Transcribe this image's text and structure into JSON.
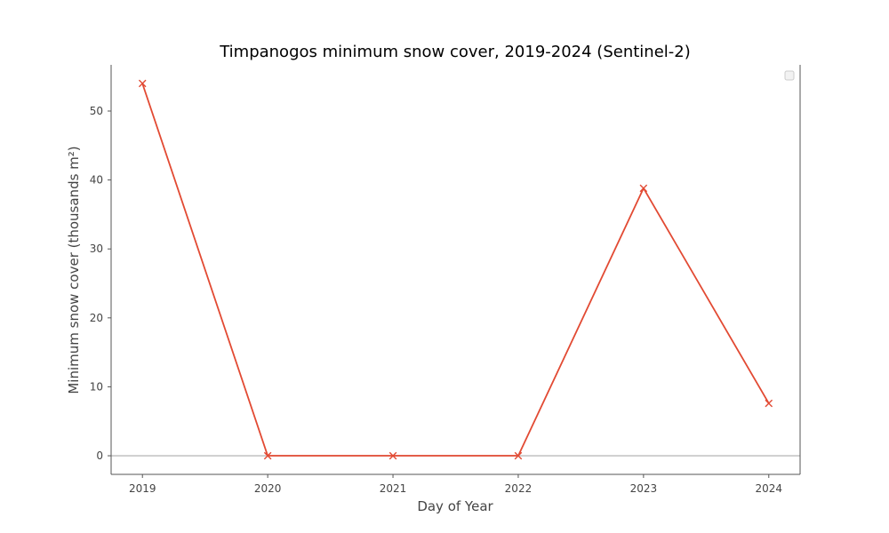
{
  "colors": {
    "series": "#E24A33",
    "axis": "#555555",
    "zero_line": "#BBBBBB",
    "legend_box": "#F2F2F2",
    "legend_border": "#CCCCCC"
  },
  "chart_data": {
    "type": "line",
    "title": "Timpanogos minimum snow cover, 2019-2024 (Sentinel-2)",
    "xlabel": "Day of Year",
    "ylabel": "Minimum snow cover (thousands m²)",
    "x": [
      2019,
      2020,
      2021,
      2022,
      2023,
      2024
    ],
    "x_tick_labels": [
      "2019",
      "2020",
      "2021",
      "2022",
      "2023",
      "2024"
    ],
    "y_ticks": [
      0,
      10,
      20,
      30,
      40,
      50
    ],
    "y_tick_labels": [
      "0",
      "10",
      "20",
      "30",
      "40",
      "50"
    ],
    "xlim": [
      2018.75,
      2024.25
    ],
    "ylim": [
      -2.7,
      56.7
    ],
    "series": [
      {
        "values": [
          54.0,
          0.0,
          0.0,
          0.0,
          38.8,
          7.6
        ],
        "marker": "x"
      }
    ],
    "reference_line_y": 0,
    "grid": false,
    "legend": {
      "placement": "top-right",
      "entries": []
    }
  }
}
